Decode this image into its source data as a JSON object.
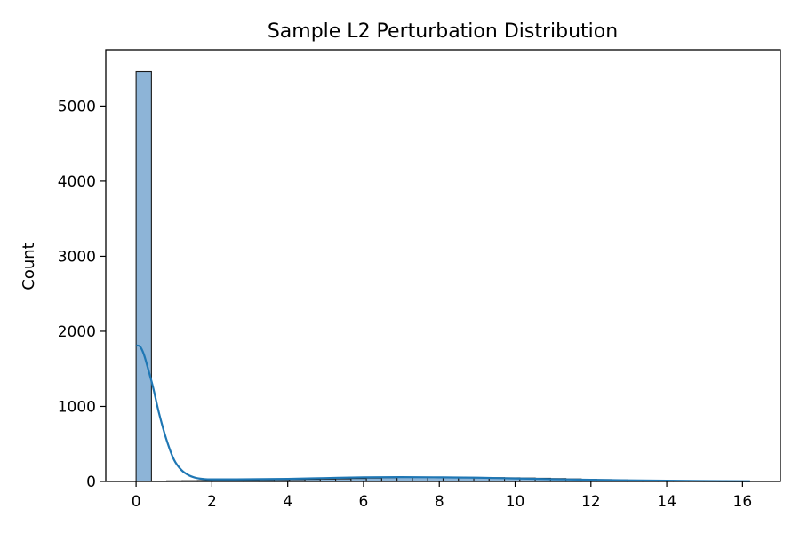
{
  "chart_data": {
    "type": "bar",
    "title": "Sample L2 Perturbation Distribution",
    "xlabel": "",
    "ylabel": "Count",
    "xlim": [
      -0.8,
      17.0
    ],
    "ylim": [
      0,
      5750
    ],
    "xticks": [
      0,
      2,
      4,
      6,
      8,
      10,
      12,
      14,
      16
    ],
    "yticks": [
      0,
      1000,
      2000,
      3000,
      4000,
      5000
    ],
    "bin_width": 0.405,
    "bin_start": 0,
    "counts": [
      5460,
      3,
      8,
      10,
      12,
      14,
      16,
      18,
      20,
      22,
      25,
      28,
      32,
      35,
      40,
      45,
      50,
      55,
      55,
      55,
      55,
      53,
      52,
      50,
      48,
      45,
      42,
      38,
      33,
      28,
      24,
      20,
      17,
      14,
      11,
      8,
      6,
      5,
      4,
      3
    ],
    "kde": {
      "x": [
        0,
        0.1,
        0.2,
        0.3,
        0.45,
        0.6,
        0.8,
        1.0,
        1.2,
        1.4,
        1.6,
        1.8,
        2.0,
        2.5,
        3,
        4,
        5,
        6,
        7,
        8,
        9,
        10,
        11,
        12,
        13,
        14,
        15,
        16.2
      ],
      "y": [
        1810,
        1800,
        1700,
        1530,
        1250,
        920,
        560,
        290,
        150,
        80,
        45,
        32,
        28,
        28,
        30,
        35,
        45,
        55,
        58,
        55,
        50,
        40,
        30,
        22,
        15,
        10,
        6,
        3
      ]
    },
    "bar_color": "#8db4d7",
    "kde_color": "#1f77b4",
    "grid": false,
    "legend": "none"
  }
}
